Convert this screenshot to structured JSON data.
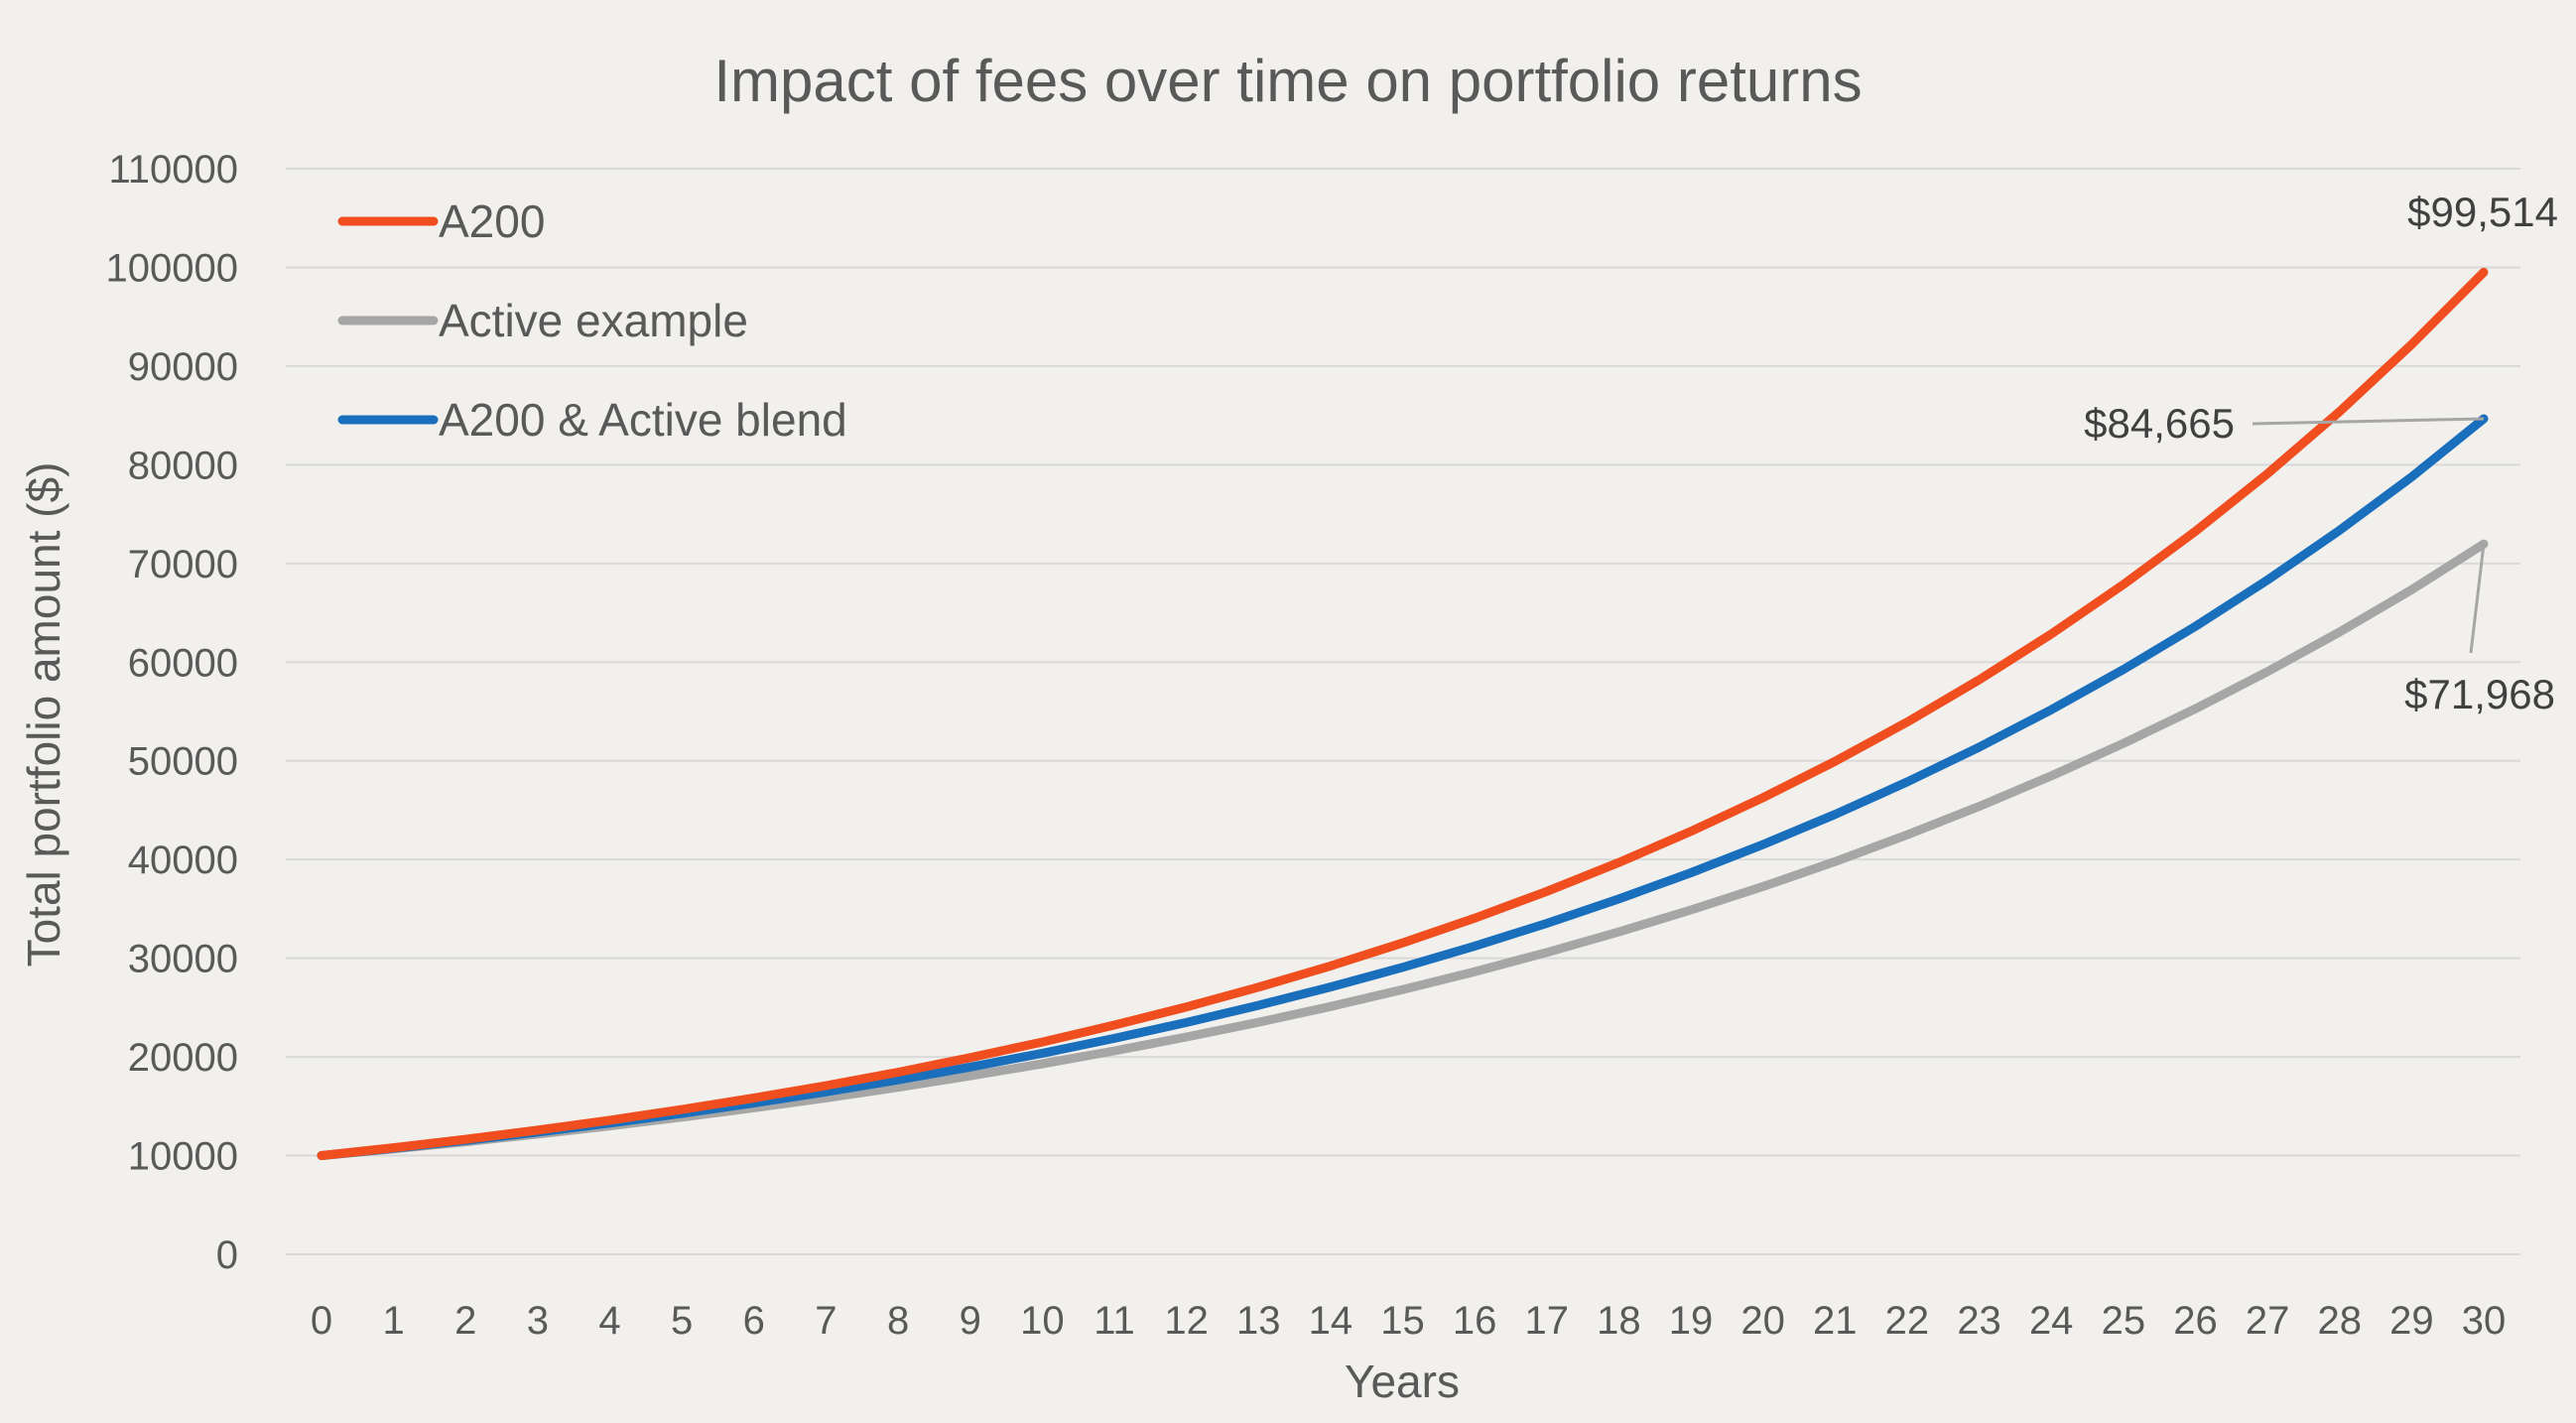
{
  "chart_data": {
    "type": "line",
    "title": "Impact of fees over time on portfolio returns",
    "xlabel": "Years",
    "ylabel": "Total portfolio amount ($)",
    "x": [
      0,
      1,
      2,
      3,
      4,
      5,
      6,
      7,
      8,
      9,
      10,
      11,
      12,
      13,
      14,
      15,
      16,
      17,
      18,
      19,
      20,
      21,
      22,
      23,
      24,
      25,
      26,
      27,
      28,
      29,
      30
    ],
    "yticks": [
      0,
      10000,
      20000,
      30000,
      40000,
      50000,
      60000,
      70000,
      80000,
      90000,
      100000,
      110000
    ],
    "ylim": [
      0,
      110000
    ],
    "grid": true,
    "legend": "top-left",
    "series": [
      {
        "name": "A200",
        "color": "#f04e1f",
        "values": [
          10000,
          10796,
          11655,
          12583,
          13585,
          14666,
          15834,
          17094,
          18455,
          19924,
          21510,
          23223,
          25071,
          27067,
          29222,
          31548,
          34059,
          36771,
          39698,
          42858,
          46269,
          49953,
          53929,
          58222,
          62857,
          67860,
          73262,
          79094,
          85390,
          92188,
          99514
        ]
      },
      {
        "name": "Active example",
        "color": "#a6a6a6",
        "values": [
          10000,
          10680,
          11406,
          12181,
          13009,
          13894,
          14838,
          15847,
          16924,
          18074,
          19303,
          20615,
          22016,
          23513,
          25111,
          26818,
          28641,
          30588,
          32667,
          34888,
          37259,
          39792,
          42497,
          45386,
          48471,
          51766,
          55284,
          59042,
          63056,
          67342,
          71968
        ]
      },
      {
        "name": "A200 & Active blend",
        "color": "#1a6fbd",
        "values": [
          10000,
          10738,
          11530,
          12381,
          13294,
          14275,
          15328,
          16458,
          17672,
          18976,
          20375,
          21878,
          23492,
          25225,
          27085,
          29083,
          31228,
          33532,
          36005,
          38661,
          41513,
          44575,
          47863,
          51393,
          55184,
          59255,
          63625,
          68318,
          73358,
          78769,
          84665
        ]
      }
    ],
    "annotations": [
      {
        "series": "A200",
        "x": 30,
        "text": "$99,514"
      },
      {
        "series": "A200 & Active blend",
        "x": 30,
        "text": "$84,665"
      },
      {
        "series": "Active example",
        "x": 30,
        "text": "$71,968"
      }
    ]
  }
}
